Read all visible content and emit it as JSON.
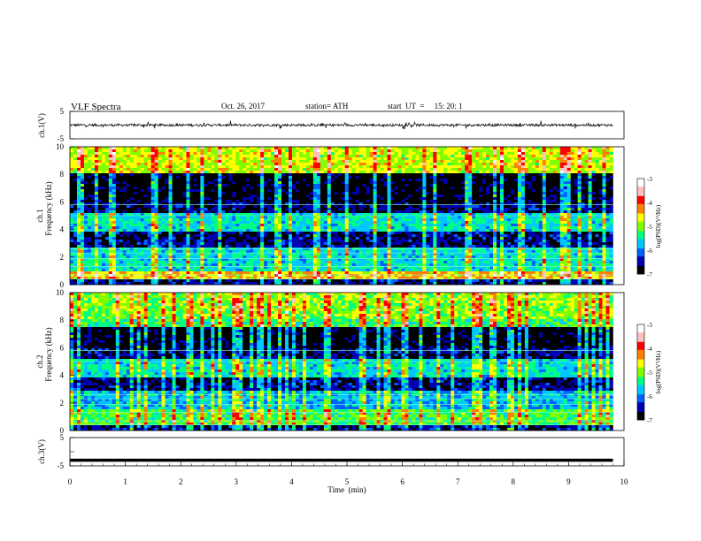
{
  "header": {
    "title": "VLF Spectra",
    "date": "Oct. 26, 2017",
    "station": "station= ATH",
    "start": "start  UT  =     15: 20: 1"
  },
  "chart_data": [
    {
      "type": "line",
      "panel": "ch1_waveform",
      "ylabel": "ch.1(V)",
      "xlim": [
        0,
        10
      ],
      "ylim": [
        -5,
        5
      ],
      "yticks": [
        "5",
        "-5"
      ],
      "series": [
        {
          "x": [
            0,
            9.8
          ],
          "values": [
            0,
            0
          ],
          "range": [
            -1.3,
            1.3
          ]
        }
      ]
    },
    {
      "type": "heatmap",
      "panel": "ch1_spectrogram",
      "ylabel": "ch.1\nFrequency (kHz)",
      "xlim": [
        0,
        10
      ],
      "ylim": [
        0,
        10
      ],
      "yticks": [
        "0",
        "2",
        "4",
        "6",
        "8",
        "10"
      ],
      "colorbar": {
        "label": "log(PSD)(V²/Hz)",
        "range": [
          -7,
          -3
        ],
        "ticks": [
          "-3",
          "-4",
          "-5",
          "-6",
          "-7"
        ],
        "colors": [
          "#000000",
          "#0000b0",
          "#0060ff",
          "#00c8ff",
          "#00ff80",
          "#80ff00",
          "#ffff00",
          "#ff8000",
          "#ff0000",
          "#ffc0c0",
          "#ffffff"
        ]
      },
      "bands": [
        {
          "fmin": 0.3,
          "fmax": 1.0,
          "level": -4.5
        },
        {
          "fmin": 1.0,
          "fmax": 2.6,
          "level": -5.6
        },
        {
          "fmin": 3.8,
          "fmax": 5.2,
          "level": -5.6
        },
        {
          "fmin": 8.0,
          "fmax": 10.0,
          "level": -4.8
        }
      ],
      "data_end_min": 9.8
    },
    {
      "type": "heatmap",
      "panel": "ch2_spectrogram",
      "ylabel": "ch.2\nFrequency (kHz)",
      "xlim": [
        0,
        10
      ],
      "ylim": [
        0,
        10
      ],
      "yticks": [
        "0",
        "2",
        "4",
        "6",
        "8",
        "10"
      ],
      "colorbar": {
        "label": "log(PSD)(V²/Hz)",
        "range": [
          -7,
          -3
        ],
        "ticks": [
          "-3",
          "-4",
          "-5",
          "-6",
          "-7"
        ],
        "colors": [
          "#000000",
          "#0000b0",
          "#0060ff",
          "#00c8ff",
          "#00ff80",
          "#80ff00",
          "#ffff00",
          "#ff8000",
          "#ff0000",
          "#ffc0c0",
          "#ffffff"
        ]
      },
      "bands": [
        {
          "fmin": 0.3,
          "fmax": 1.6,
          "level": -5.2
        },
        {
          "fmin": 1.6,
          "fmax": 2.8,
          "level": -5.8
        },
        {
          "fmin": 3.8,
          "fmax": 5.2,
          "level": -5.6
        },
        {
          "fmin": 7.5,
          "fmax": 10.0,
          "level": -5.0
        }
      ],
      "data_end_min": 9.8
    },
    {
      "type": "line",
      "panel": "ch3_waveform",
      "ylabel": "ch.3(V)",
      "xlabel": "Time  (min)",
      "xlim": [
        0,
        10
      ],
      "ylim": [
        -5,
        5
      ],
      "yticks": [
        "5",
        "0",
        "-5"
      ],
      "xticks": [
        "0",
        "1",
        "2",
        "3",
        "4",
        "5",
        "6",
        "7",
        "8",
        "9",
        "10"
      ],
      "series": [
        {
          "x": [
            0,
            9.8
          ],
          "values": [
            -3,
            -3
          ]
        }
      ]
    }
  ]
}
